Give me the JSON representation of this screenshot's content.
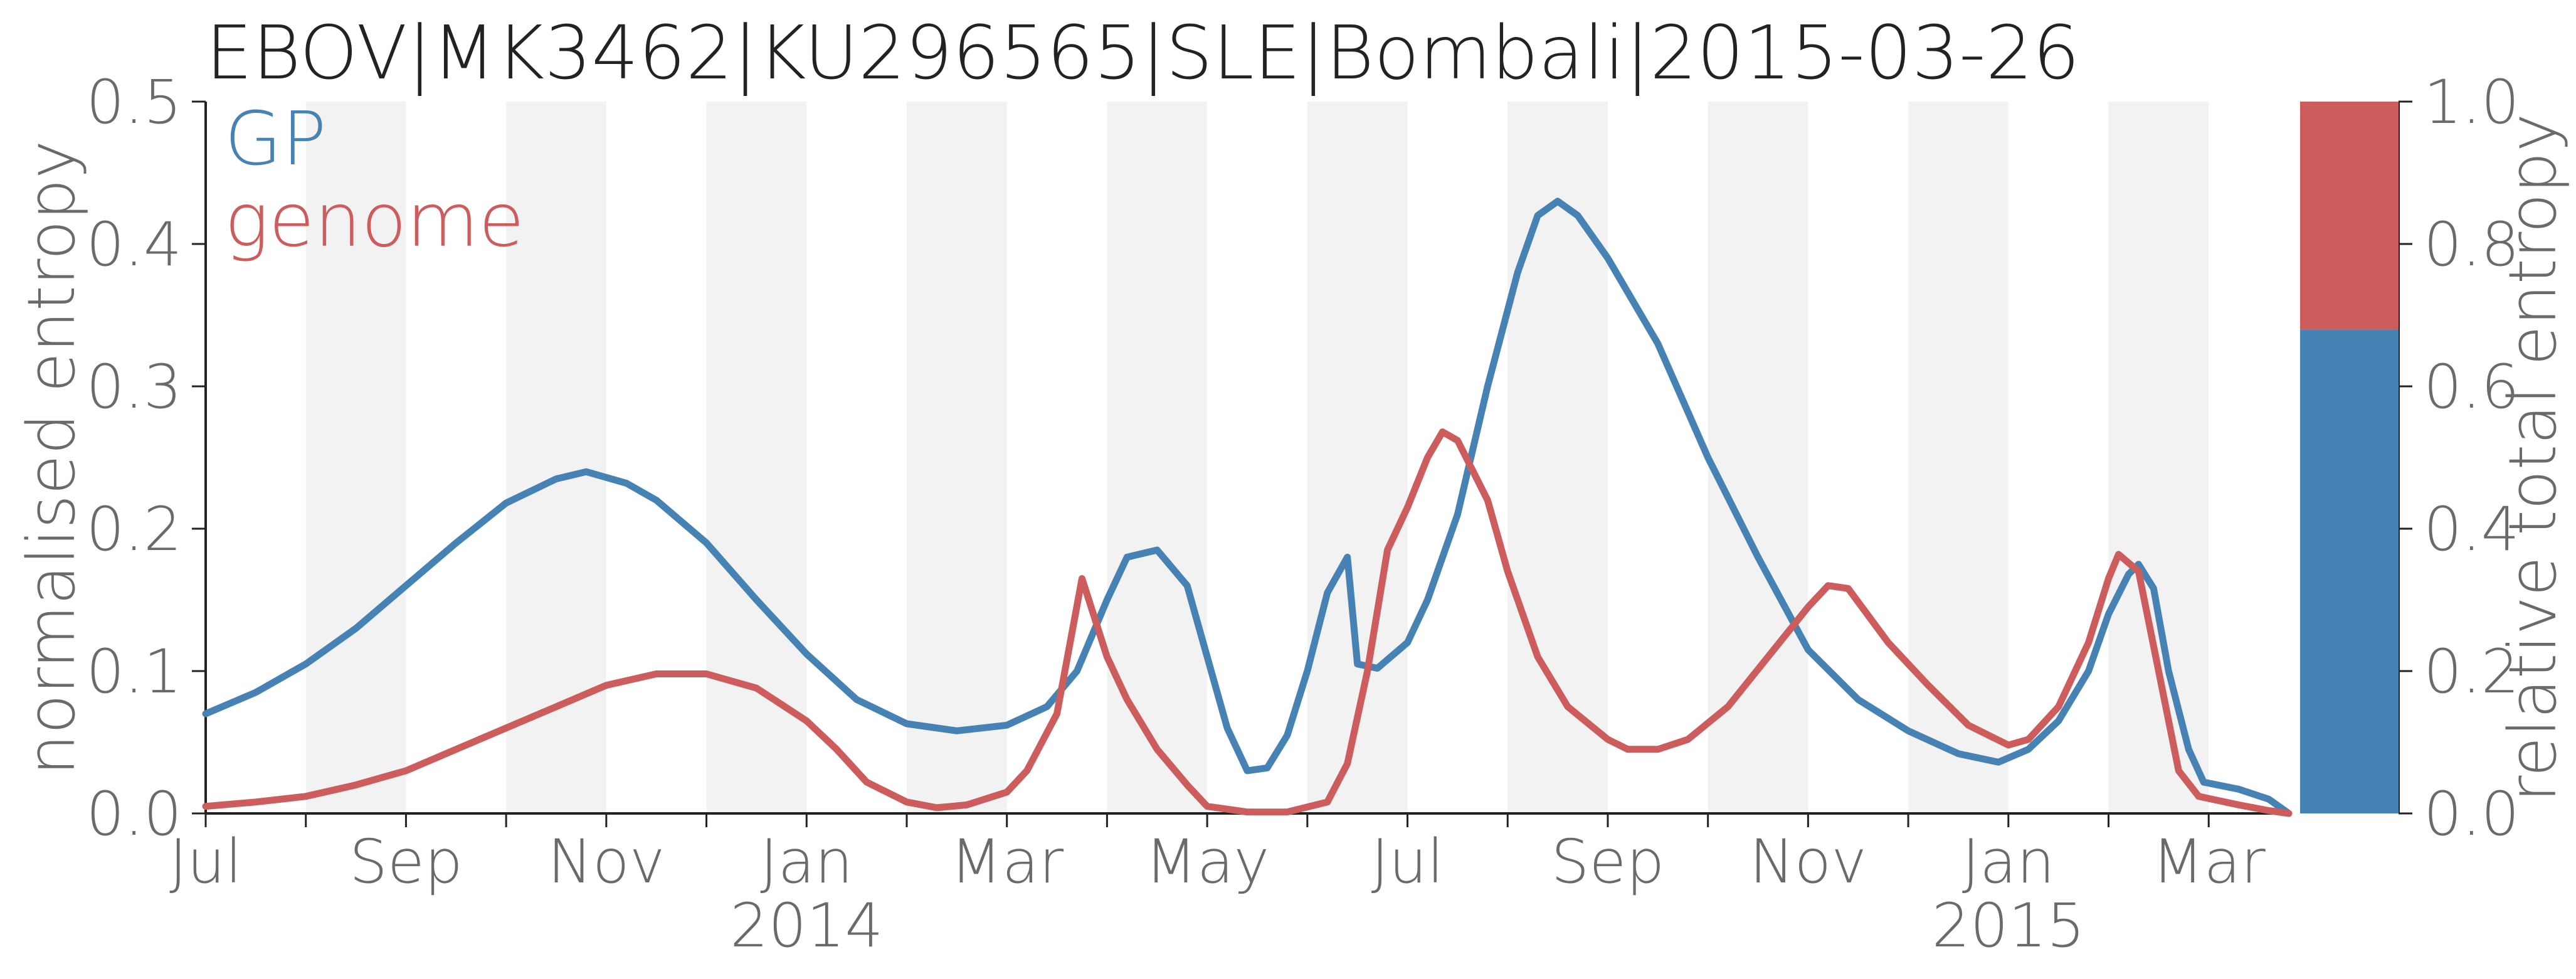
{
  "chart_data": {
    "type": "line",
    "title": "EBOV|MK3462|KU296565|SLE|Bombali|2015-03-26",
    "ylabel": "normalised entropy",
    "y2label": "relative total entropy",
    "ylim": [
      0,
      0.5
    ],
    "y_ticks": [
      "0.0",
      "0.1",
      "0.2",
      "0.3",
      "0.4",
      "0.5"
    ],
    "y2lim": [
      0,
      1
    ],
    "y2_ticks": [
      "0.0",
      "0.2",
      "0.4",
      "0.6",
      "0.8",
      "1.0"
    ],
    "x_unit": "months since 2013-07-01",
    "xlim": [
      0,
      20.8
    ],
    "x_tick_labels": [
      {
        "x": 0,
        "label": "Jul"
      },
      {
        "x": 2,
        "label": "Sep"
      },
      {
        "x": 4,
        "label": "Nov"
      },
      {
        "x": 6,
        "label": "Jan"
      },
      {
        "x": 8,
        "label": "Mar"
      },
      {
        "x": 10,
        "label": "May"
      },
      {
        "x": 12,
        "label": "Jul"
      },
      {
        "x": 14,
        "label": "Sep"
      },
      {
        "x": 16,
        "label": "Nov"
      },
      {
        "x": 18,
        "label": "Jan"
      },
      {
        "x": 20,
        "label": "Mar"
      }
    ],
    "year_labels": [
      {
        "x": 6,
        "label": "2014"
      },
      {
        "x": 18,
        "label": "2015"
      }
    ],
    "grid": "alternate monthly shaded bands",
    "legend": "top-left",
    "series": [
      {
        "name": "GP",
        "color": "#4682b4",
        "points": [
          [
            0,
            0.07
          ],
          [
            0.5,
            0.085
          ],
          [
            1,
            0.105
          ],
          [
            1.5,
            0.13
          ],
          [
            2,
            0.16
          ],
          [
            2.5,
            0.19
          ],
          [
            3,
            0.218
          ],
          [
            3.5,
            0.235
          ],
          [
            3.8,
            0.24
          ],
          [
            4.2,
            0.232
          ],
          [
            4.5,
            0.22
          ],
          [
            5,
            0.19
          ],
          [
            5.5,
            0.15
          ],
          [
            6,
            0.112
          ],
          [
            6.5,
            0.08
          ],
          [
            7,
            0.063
          ],
          [
            7.5,
            0.058
          ],
          [
            8,
            0.062
          ],
          [
            8.4,
            0.075
          ],
          [
            8.7,
            0.1
          ],
          [
            9.0,
            0.15
          ],
          [
            9.2,
            0.18
          ],
          [
            9.5,
            0.185
          ],
          [
            9.8,
            0.16
          ],
          [
            10.0,
            0.11
          ],
          [
            10.2,
            0.06
          ],
          [
            10.4,
            0.03
          ],
          [
            10.6,
            0.032
          ],
          [
            10.8,
            0.055
          ],
          [
            11.0,
            0.1
          ],
          [
            11.2,
            0.155
          ],
          [
            11.4,
            0.18
          ],
          [
            11.5,
            0.105
          ],
          [
            11.7,
            0.102
          ],
          [
            12.0,
            0.12
          ],
          [
            12.2,
            0.15
          ],
          [
            12.5,
            0.21
          ],
          [
            12.8,
            0.3
          ],
          [
            13.1,
            0.38
          ],
          [
            13.3,
            0.42
          ],
          [
            13.5,
            0.43
          ],
          [
            13.7,
            0.42
          ],
          [
            14.0,
            0.39
          ],
          [
            14.5,
            0.33
          ],
          [
            15.0,
            0.25
          ],
          [
            15.5,
            0.18
          ],
          [
            16.0,
            0.115
          ],
          [
            16.5,
            0.08
          ],
          [
            17.0,
            0.058
          ],
          [
            17.5,
            0.042
          ],
          [
            17.9,
            0.036
          ],
          [
            18.2,
            0.045
          ],
          [
            18.5,
            0.065
          ],
          [
            18.8,
            0.1
          ],
          [
            19.0,
            0.14
          ],
          [
            19.2,
            0.168
          ],
          [
            19.3,
            0.175
          ],
          [
            19.45,
            0.158
          ],
          [
            19.6,
            0.1
          ],
          [
            19.8,
            0.045
          ],
          [
            19.95,
            0.022
          ],
          [
            20.3,
            0.017
          ],
          [
            20.6,
            0.01
          ],
          [
            20.8,
            0.0
          ]
        ]
      },
      {
        "name": "genome",
        "color": "#cd5c5c",
        "points": [
          [
            0,
            0.005
          ],
          [
            0.5,
            0.008
          ],
          [
            1,
            0.012
          ],
          [
            1.5,
            0.02
          ],
          [
            2,
            0.03
          ],
          [
            2.5,
            0.045
          ],
          [
            3,
            0.06
          ],
          [
            3.5,
            0.075
          ],
          [
            4,
            0.09
          ],
          [
            4.5,
            0.098
          ],
          [
            5,
            0.098
          ],
          [
            5.5,
            0.088
          ],
          [
            6,
            0.065
          ],
          [
            6.3,
            0.045
          ],
          [
            6.6,
            0.022
          ],
          [
            7,
            0.008
          ],
          [
            7.3,
            0.004
          ],
          [
            7.6,
            0.006
          ],
          [
            8,
            0.015
          ],
          [
            8.2,
            0.03
          ],
          [
            8.5,
            0.07
          ],
          [
            8.75,
            0.165
          ],
          [
            9.0,
            0.11
          ],
          [
            9.2,
            0.08
          ],
          [
            9.5,
            0.045
          ],
          [
            9.8,
            0.02
          ],
          [
            10.0,
            0.005
          ],
          [
            10.4,
            0.001
          ],
          [
            10.8,
            0.001
          ],
          [
            11.2,
            0.008
          ],
          [
            11.4,
            0.035
          ],
          [
            11.6,
            0.1
          ],
          [
            11.8,
            0.185
          ],
          [
            12.0,
            0.215
          ],
          [
            12.2,
            0.25
          ],
          [
            12.35,
            0.268
          ],
          [
            12.5,
            0.262
          ],
          [
            12.8,
            0.22
          ],
          [
            13.0,
            0.17
          ],
          [
            13.3,
            0.11
          ],
          [
            13.6,
            0.075
          ],
          [
            14.0,
            0.052
          ],
          [
            14.2,
            0.045
          ],
          [
            14.5,
            0.045
          ],
          [
            14.8,
            0.052
          ],
          [
            15.2,
            0.075
          ],
          [
            15.6,
            0.11
          ],
          [
            16.0,
            0.145
          ],
          [
            16.2,
            0.16
          ],
          [
            16.4,
            0.158
          ],
          [
            16.8,
            0.12
          ],
          [
            17.2,
            0.09
          ],
          [
            17.6,
            0.062
          ],
          [
            18.0,
            0.048
          ],
          [
            18.2,
            0.052
          ],
          [
            18.5,
            0.075
          ],
          [
            18.8,
            0.12
          ],
          [
            19.0,
            0.165
          ],
          [
            19.1,
            0.182
          ],
          [
            19.3,
            0.17
          ],
          [
            19.5,
            0.1
          ],
          [
            19.7,
            0.03
          ],
          [
            19.9,
            0.012
          ],
          [
            20.3,
            0.006
          ],
          [
            20.6,
            0.002
          ],
          [
            20.8,
            0.0
          ]
        ]
      }
    ],
    "stacked_bar": {
      "label": "relative total entropy",
      "segments": [
        {
          "name": "GP",
          "value": 0.68,
          "color": "#4682b4"
        },
        {
          "name": "genome",
          "value": 0.32,
          "color": "#cd5c5c"
        }
      ]
    }
  }
}
